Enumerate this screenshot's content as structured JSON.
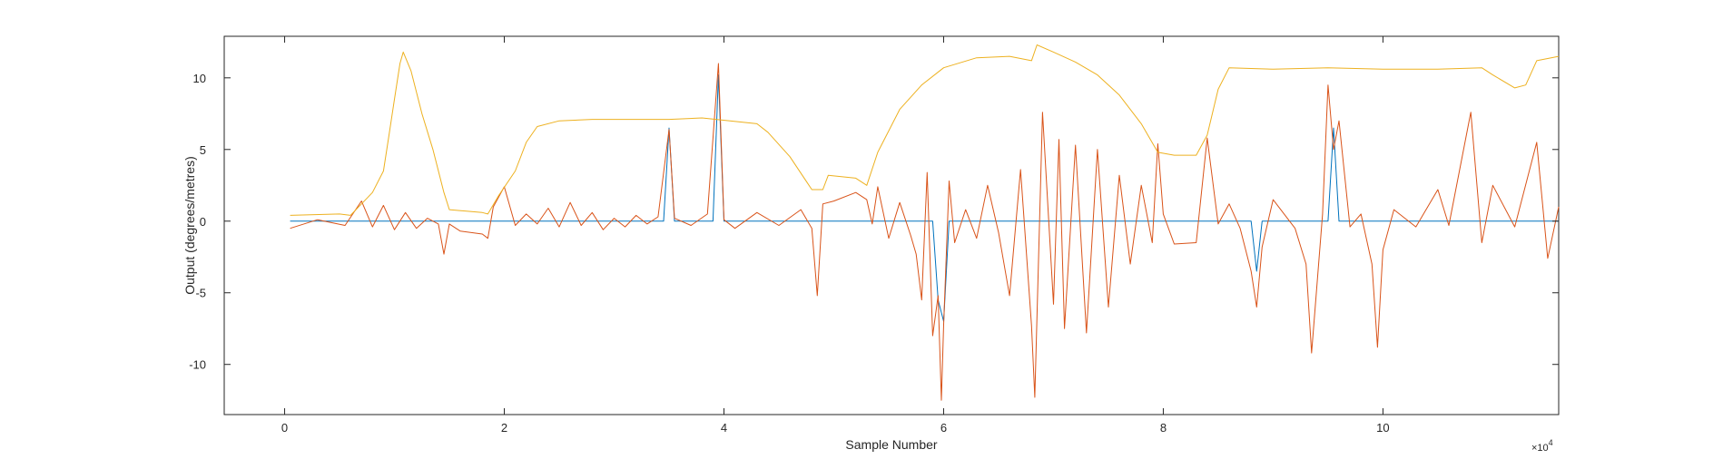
{
  "chart_data": {
    "type": "line",
    "title": "",
    "xlabel": "Sample Number",
    "ylabel": "Output (degrees/metres)",
    "x_exponent_label": "×10",
    "x_exponent": "4",
    "xlim": [
      -0.55,
      11.6
    ],
    "ylim": [
      -13.5,
      12.9
    ],
    "x_scale_multiplier": 10000,
    "x_ticks": [
      0,
      2,
      4,
      6,
      8,
      10
    ],
    "x_tick_labels": [
      "0",
      "2",
      "4",
      "6",
      "8",
      "10"
    ],
    "y_ticks": [
      10,
      5,
      0,
      -5,
      -10
    ],
    "y_tick_labels": [
      "10",
      "5",
      "0",
      "-5",
      "-10"
    ],
    "grid": false,
    "legend": "none",
    "series": [
      {
        "color": "#0072BD",
        "points": [
          [
            0.05,
            0
          ],
          [
            3.45,
            0
          ],
          [
            3.5,
            6.5
          ],
          [
            3.55,
            0
          ],
          [
            3.9,
            0
          ],
          [
            3.95,
            10.2
          ],
          [
            4.0,
            0
          ],
          [
            5.9,
            0
          ],
          [
            5.95,
            -5.5
          ],
          [
            6.0,
            -7
          ],
          [
            6.05,
            0
          ],
          [
            8.8,
            0
          ],
          [
            8.85,
            -3.5
          ],
          [
            8.9,
            0
          ],
          [
            9.5,
            0
          ],
          [
            9.55,
            6.5
          ],
          [
            9.6,
            0
          ],
          [
            11.6,
            0
          ]
        ]
      },
      {
        "color": "#D95319",
        "points": [
          [
            0.05,
            -0.5
          ],
          [
            0.3,
            0.1
          ],
          [
            0.55,
            -0.3
          ],
          [
            0.7,
            1.4
          ],
          [
            0.8,
            -0.4
          ],
          [
            0.9,
            1.1
          ],
          [
            1.0,
            -0.6
          ],
          [
            1.1,
            0.6
          ],
          [
            1.2,
            -0.5
          ],
          [
            1.3,
            0.2
          ],
          [
            1.4,
            -0.2
          ],
          [
            1.45,
            -2.3
          ],
          [
            1.5,
            -0.2
          ],
          [
            1.6,
            -0.7
          ],
          [
            1.8,
            -0.9
          ],
          [
            1.85,
            -1.2
          ],
          [
            1.9,
            1.0
          ],
          [
            2.0,
            2.4
          ],
          [
            2.1,
            -0.3
          ],
          [
            2.2,
            0.5
          ],
          [
            2.3,
            -0.2
          ],
          [
            2.4,
            0.9
          ],
          [
            2.5,
            -0.4
          ],
          [
            2.6,
            1.3
          ],
          [
            2.7,
            -0.3
          ],
          [
            2.8,
            0.6
          ],
          [
            2.9,
            -0.6
          ],
          [
            3.0,
            0.2
          ],
          [
            3.1,
            -0.4
          ],
          [
            3.2,
            0.4
          ],
          [
            3.3,
            -0.2
          ],
          [
            3.4,
            0.3
          ],
          [
            3.5,
            6.4
          ],
          [
            3.55,
            0.2
          ],
          [
            3.7,
            -0.3
          ],
          [
            3.85,
            0.5
          ],
          [
            3.95,
            11.0
          ],
          [
            4.0,
            0.1
          ],
          [
            4.1,
            -0.5
          ],
          [
            4.3,
            0.6
          ],
          [
            4.5,
            -0.3
          ],
          [
            4.7,
            0.8
          ],
          [
            4.8,
            -0.5
          ],
          [
            4.85,
            -5.2
          ],
          [
            4.9,
            1.2
          ],
          [
            5.0,
            1.4
          ],
          [
            5.2,
            2.0
          ],
          [
            5.3,
            1.5
          ],
          [
            5.35,
            -0.2
          ],
          [
            5.4,
            2.4
          ],
          [
            5.5,
            -1.2
          ],
          [
            5.6,
            1.3
          ],
          [
            5.7,
            -1.0
          ],
          [
            5.75,
            -2.3
          ],
          [
            5.8,
            -5.5
          ],
          [
            5.85,
            3.4
          ],
          [
            5.9,
            -8.0
          ],
          [
            5.95,
            -5.2
          ],
          [
            5.98,
            -12.5
          ],
          [
            6.0,
            -7.2
          ],
          [
            6.05,
            2.8
          ],
          [
            6.1,
            -1.5
          ],
          [
            6.2,
            0.8
          ],
          [
            6.3,
            -1.2
          ],
          [
            6.4,
            2.5
          ],
          [
            6.5,
            -0.8
          ],
          [
            6.6,
            -5.2
          ],
          [
            6.7,
            3.6
          ],
          [
            6.8,
            -7.3
          ],
          [
            6.83,
            -12.3
          ],
          [
            6.9,
            7.6
          ],
          [
            7.0,
            -5.8
          ],
          [
            7.05,
            5.7
          ],
          [
            7.1,
            -7.5
          ],
          [
            7.2,
            5.3
          ],
          [
            7.3,
            -7.8
          ],
          [
            7.4,
            5.0
          ],
          [
            7.5,
            -6.0
          ],
          [
            7.6,
            3.2
          ],
          [
            7.7,
            -3.0
          ],
          [
            7.8,
            2.5
          ],
          [
            7.9,
            -1.5
          ],
          [
            7.95,
            5.4
          ],
          [
            8.0,
            0.5
          ],
          [
            8.1,
            -1.6
          ],
          [
            8.3,
            -1.5
          ],
          [
            8.4,
            5.8
          ],
          [
            8.5,
            -0.2
          ],
          [
            8.6,
            1.2
          ],
          [
            8.7,
            -0.5
          ],
          [
            8.8,
            -3.5
          ],
          [
            8.85,
            -6.0
          ],
          [
            8.9,
            -1.8
          ],
          [
            9.0,
            1.5
          ],
          [
            9.2,
            -0.5
          ],
          [
            9.3,
            -3.0
          ],
          [
            9.35,
            -9.2
          ],
          [
            9.45,
            0.5
          ],
          [
            9.5,
            9.5
          ],
          [
            9.55,
            5.0
          ],
          [
            9.6,
            7.0
          ],
          [
            9.7,
            -0.4
          ],
          [
            9.8,
            0.5
          ],
          [
            9.9,
            -3.0
          ],
          [
            9.95,
            -8.8
          ],
          [
            10.0,
            -2.0
          ],
          [
            10.1,
            0.8
          ],
          [
            10.3,
            -0.4
          ],
          [
            10.5,
            2.2
          ],
          [
            10.6,
            -0.3
          ],
          [
            10.8,
            7.6
          ],
          [
            10.9,
            -1.5
          ],
          [
            11.0,
            2.5
          ],
          [
            11.2,
            -0.4
          ],
          [
            11.4,
            5.5
          ],
          [
            11.5,
            -2.6
          ],
          [
            11.6,
            1.0
          ]
        ]
      },
      {
        "color": "#EDB120",
        "points": [
          [
            0.05,
            0.4
          ],
          [
            0.5,
            0.5
          ],
          [
            0.6,
            0.4
          ],
          [
            0.7,
            1.2
          ],
          [
            0.8,
            2.0
          ],
          [
            0.9,
            3.5
          ],
          [
            0.95,
            6.0
          ],
          [
            1.0,
            8.5
          ],
          [
            1.05,
            11.0
          ],
          [
            1.08,
            11.8
          ],
          [
            1.15,
            10.5
          ],
          [
            1.25,
            7.5
          ],
          [
            1.35,
            5.0
          ],
          [
            1.45,
            2.0
          ],
          [
            1.5,
            0.8
          ],
          [
            1.8,
            0.6
          ],
          [
            1.85,
            0.5
          ],
          [
            1.95,
            1.8
          ],
          [
            2.1,
            3.5
          ],
          [
            2.2,
            5.5
          ],
          [
            2.3,
            6.6
          ],
          [
            2.5,
            7.0
          ],
          [
            2.8,
            7.1
          ],
          [
            3.5,
            7.1
          ],
          [
            3.8,
            7.2
          ],
          [
            4.3,
            6.8
          ],
          [
            4.4,
            6.2
          ],
          [
            4.6,
            4.5
          ],
          [
            4.8,
            2.2
          ],
          [
            4.9,
            2.2
          ],
          [
            4.95,
            3.2
          ],
          [
            5.2,
            3.0
          ],
          [
            5.3,
            2.5
          ],
          [
            5.4,
            4.8
          ],
          [
            5.6,
            7.8
          ],
          [
            5.8,
            9.5
          ],
          [
            6.0,
            10.7
          ],
          [
            6.3,
            11.4
          ],
          [
            6.6,
            11.5
          ],
          [
            6.8,
            11.2
          ],
          [
            6.85,
            12.3
          ],
          [
            7.0,
            11.8
          ],
          [
            7.2,
            11.1
          ],
          [
            7.4,
            10.2
          ],
          [
            7.6,
            8.8
          ],
          [
            7.8,
            6.8
          ],
          [
            7.95,
            4.8
          ],
          [
            8.1,
            4.6
          ],
          [
            8.3,
            4.6
          ],
          [
            8.4,
            6.0
          ],
          [
            8.5,
            9.2
          ],
          [
            8.6,
            10.7
          ],
          [
            9.0,
            10.6
          ],
          [
            9.5,
            10.7
          ],
          [
            10.0,
            10.6
          ],
          [
            10.5,
            10.6
          ],
          [
            10.9,
            10.7
          ],
          [
            11.0,
            10.2
          ],
          [
            11.2,
            9.3
          ],
          [
            11.3,
            9.5
          ],
          [
            11.4,
            11.2
          ],
          [
            11.6,
            11.5
          ]
        ]
      }
    ]
  }
}
